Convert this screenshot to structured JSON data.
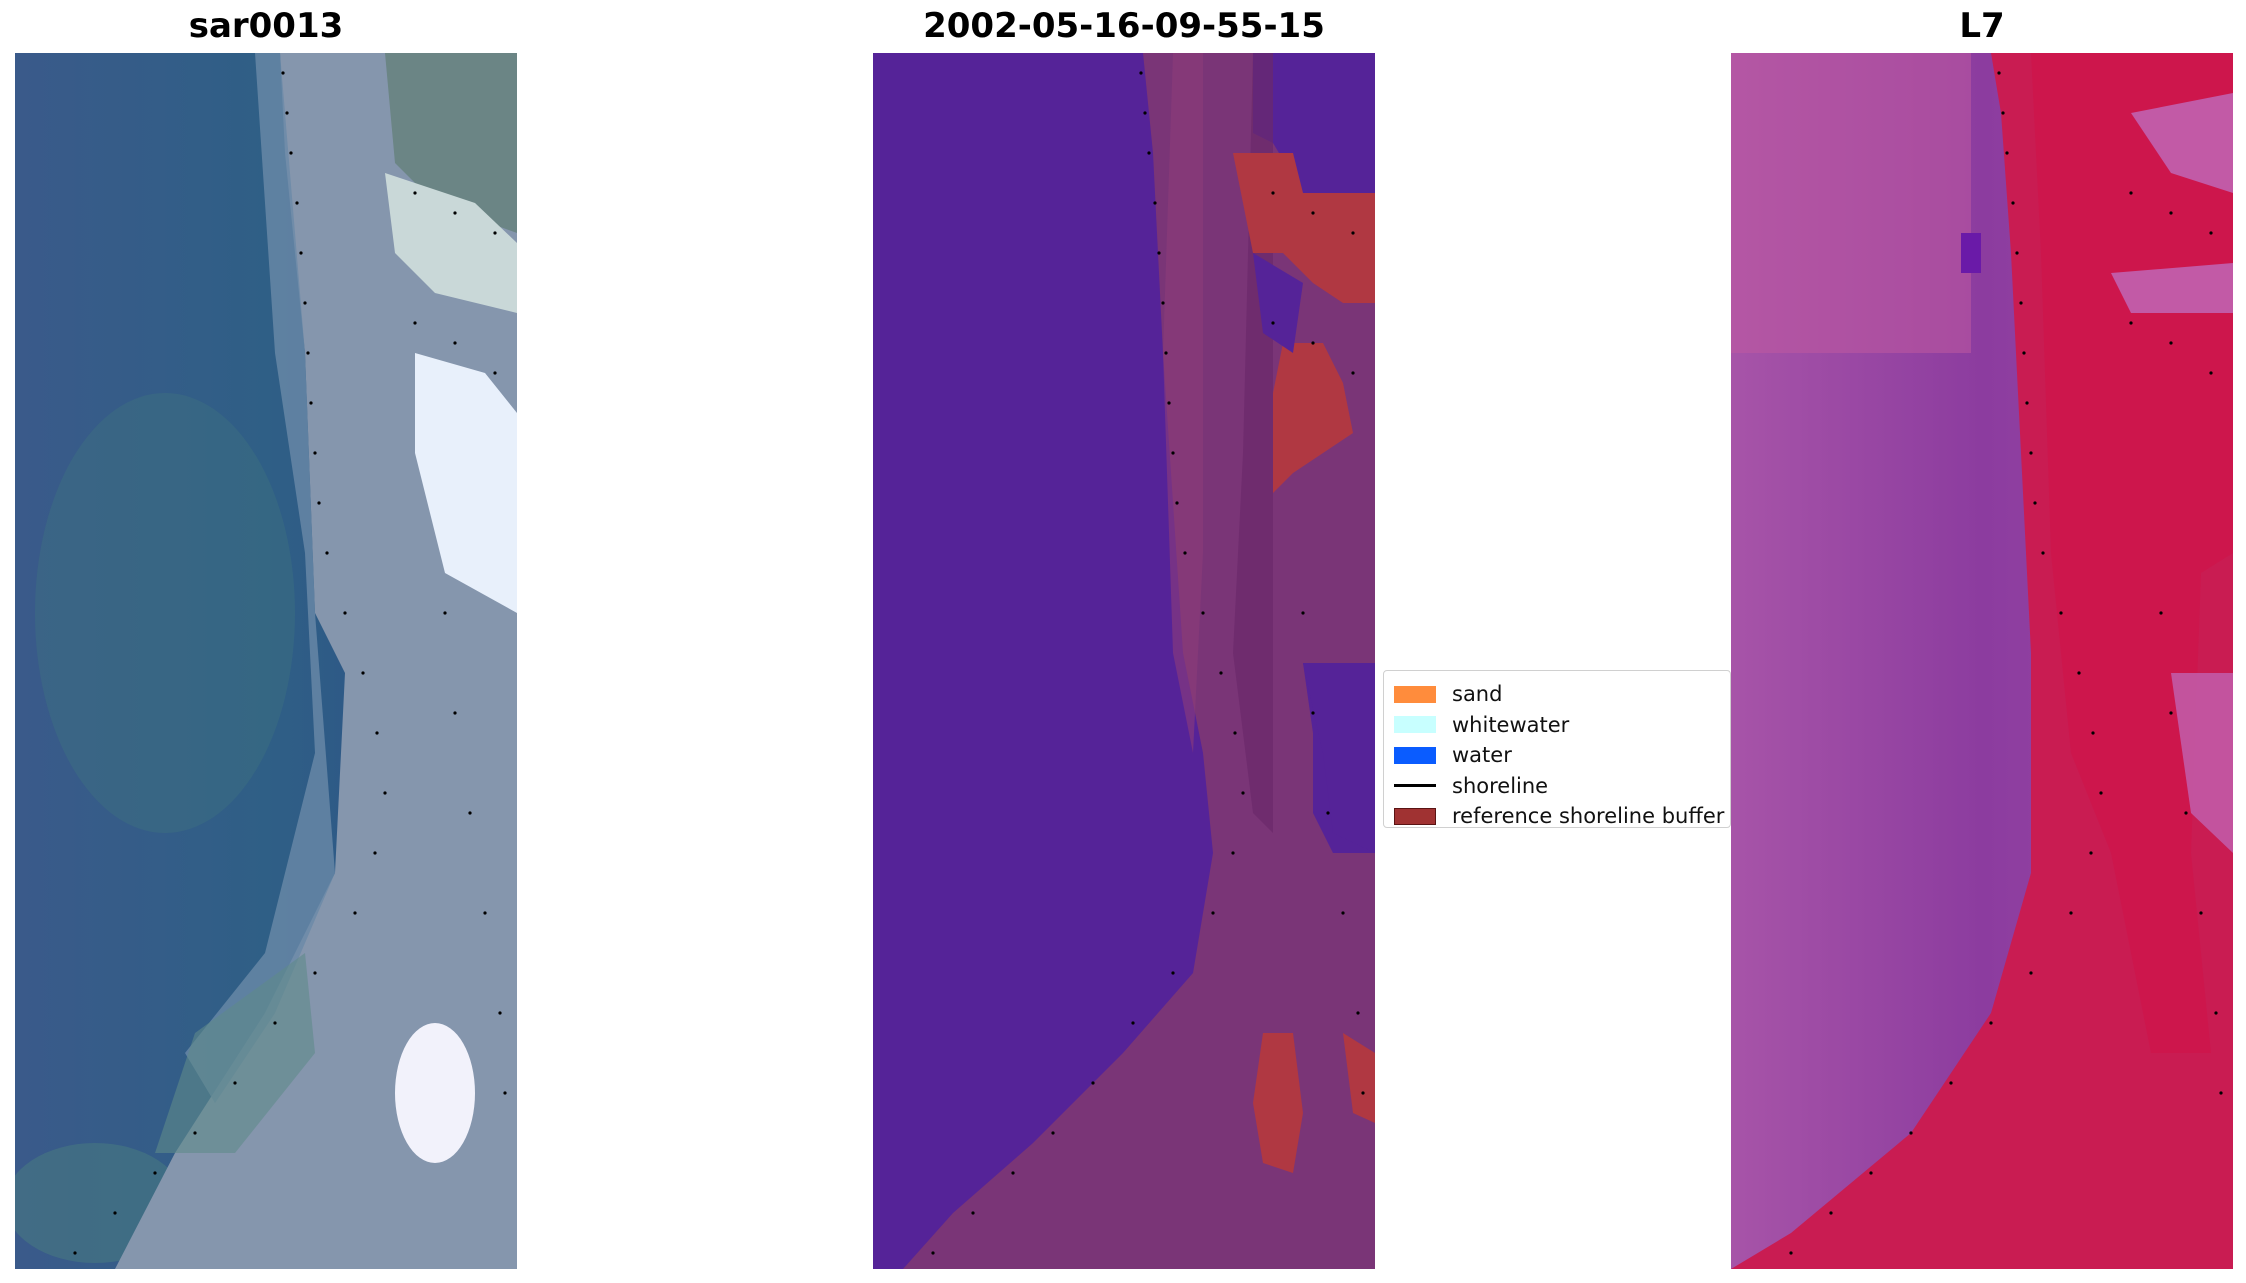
{
  "panels": [
    {
      "title": "sar0013"
    },
    {
      "title": "2002-05-16-09-55-15"
    },
    {
      "title": "L7"
    }
  ],
  "legend": {
    "items": [
      {
        "label": "sand",
        "color": "#ff8c3c",
        "kind": "patch"
      },
      {
        "label": "whitewater",
        "color": "#c8ffff",
        "kind": "patch"
      },
      {
        "label": "water",
        "color": "#0a5cff",
        "kind": "patch"
      },
      {
        "label": "shoreline",
        "color": "#000000",
        "kind": "line"
      },
      {
        "label": "reference shoreline buffer",
        "color": "#a03232",
        "kind": "patch"
      }
    ]
  },
  "colors": {
    "rgb_sea": "#2e4f85",
    "rgb_land": "#8e9fb6",
    "class_water": "#552398",
    "class_overlay": "#7a3577",
    "class_sand_buffer": "#b03842",
    "ir_purple": "#9b4aa6",
    "ir_red": "#c90b3c",
    "shoreline_dots": "#000000"
  }
}
